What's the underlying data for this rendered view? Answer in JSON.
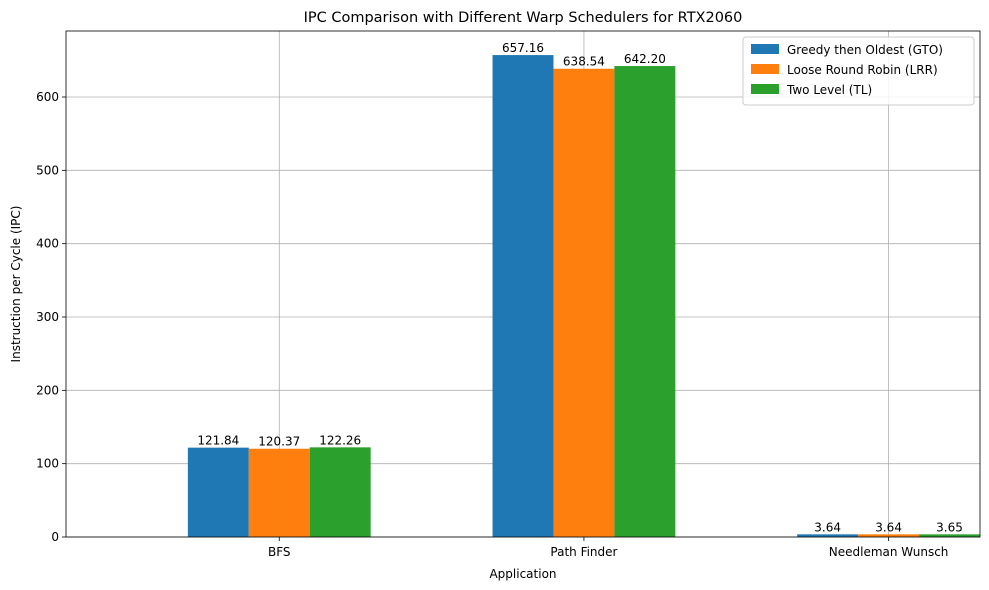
{
  "chart_data": {
    "type": "bar",
    "title": "IPC Comparison with Different Warp Schedulers for RTX2060",
    "xlabel": "Application",
    "ylabel": "Instruction per Cycle (IPC)",
    "categories": [
      "BFS",
      "Path Finder",
      "Needleman Wunsch"
    ],
    "series": [
      {
        "name": "Greedy then Oldest (GTO)",
        "color": "#1f77b4",
        "values": [
          121.84,
          657.16,
          3.64
        ],
        "labels": [
          "121.84",
          "657.16",
          "3.64"
        ]
      },
      {
        "name": "Loose Round Robin (LRR)",
        "color": "#ff7f0e",
        "values": [
          120.37,
          638.54,
          3.64
        ],
        "labels": [
          "120.37",
          "638.54",
          "3.64"
        ]
      },
      {
        "name": "Two Level (TL)",
        "color": "#2ca02c",
        "values": [
          122.26,
          642.2,
          3.65
        ],
        "labels": [
          "122.26",
          "642.20",
          "3.65"
        ]
      }
    ],
    "ylim": [
      0,
      690
    ],
    "yticks": [
      0,
      100,
      200,
      300,
      400,
      500,
      600
    ],
    "grid": true,
    "legend": "top-right"
  }
}
